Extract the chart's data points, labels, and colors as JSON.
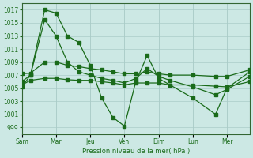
{
  "background_color": "#cce8e4",
  "grid_color": "#aaccc8",
  "line_color": "#1a6b1a",
  "xlabel": "Pression niveau de la mer( hPa )",
  "xtick_labels": [
    "Sam",
    "Mar",
    "Jeu",
    "Ven",
    "Dim",
    "Lun",
    "Mer"
  ],
  "xtick_positions": [
    0,
    12,
    24,
    36,
    48,
    60,
    72
  ],
  "ytick_labels": [
    999,
    1001,
    1003,
    1005,
    1007,
    1009,
    1011,
    1013,
    1015,
    1017
  ],
  "ylim": [
    998.0,
    1018.0
  ],
  "xlim": [
    0,
    80
  ],
  "series_main": {
    "x": [
      0,
      3,
      8,
      12,
      16,
      20,
      24,
      28,
      32,
      36,
      40,
      44,
      48,
      52,
      60,
      68,
      72,
      80
    ],
    "y": [
      1005.2,
      1007.0,
      1017.0,
      1016.5,
      1013.0,
      1012.0,
      1008.5,
      1003.5,
      1000.5,
      999.2,
      1006.0,
      1010.0,
      1006.5,
      1005.5,
      1003.5,
      1001.0,
      1005.0,
      1007.5
    ]
  },
  "series_upper": {
    "x": [
      0,
      3,
      8,
      12,
      16,
      20,
      24,
      28,
      32,
      36,
      40,
      44,
      48,
      52,
      60,
      68,
      72,
      80
    ],
    "y": [
      1007.2,
      1007.3,
      1009.0,
      1009.0,
      1008.5,
      1008.3,
      1008.0,
      1007.8,
      1007.5,
      1007.2,
      1007.2,
      1007.5,
      1007.2,
      1007.0,
      1007.0,
      1006.8,
      1006.8,
      1007.8
    ]
  },
  "series_lower": {
    "x": [
      0,
      3,
      8,
      12,
      16,
      20,
      24,
      28,
      32,
      36,
      40,
      44,
      48,
      52,
      60,
      68,
      72,
      80
    ],
    "y": [
      1005.5,
      1006.2,
      1006.5,
      1006.5,
      1006.3,
      1006.2,
      1006.2,
      1006.0,
      1005.8,
      1005.5,
      1005.8,
      1005.8,
      1005.8,
      1005.5,
      1005.5,
      1005.3,
      1005.2,
      1006.0
    ]
  },
  "series_mid": {
    "x": [
      0,
      3,
      8,
      12,
      16,
      20,
      24,
      28,
      32,
      36,
      40,
      44,
      48,
      52,
      60,
      68,
      72,
      80
    ],
    "y": [
      1006.0,
      1007.0,
      1015.5,
      1013.0,
      1009.0,
      1007.5,
      1007.0,
      1006.5,
      1006.2,
      1005.8,
      1006.5,
      1008.0,
      1006.8,
      1006.2,
      1005.2,
      1004.0,
      1004.8,
      1006.8
    ]
  },
  "border_color": "#336633",
  "vline_x": [
    0,
    12,
    24,
    36,
    48,
    60,
    72,
    80
  ]
}
